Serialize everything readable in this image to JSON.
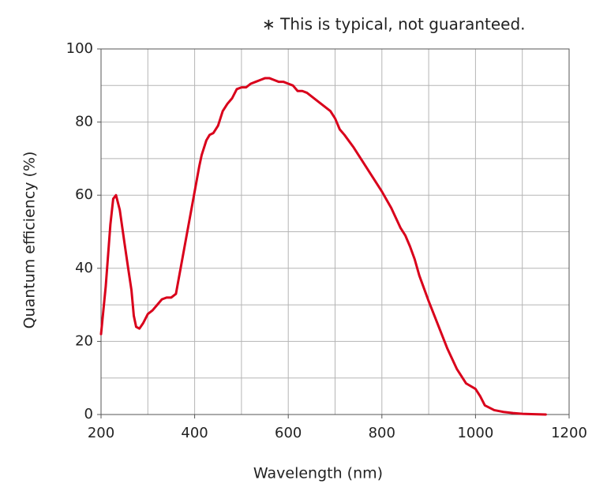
{
  "chart_data": {
    "type": "line",
    "annotation": "∗ This is typical, not guaranteed.",
    "x_label": "Wavelength (nm)",
    "y_label": "Quantum efficiency (%)",
    "xlim": [
      200,
      1200
    ],
    "ylim": [
      0,
      100
    ],
    "xticks": [
      200,
      400,
      600,
      800,
      1000,
      1200
    ],
    "yticks": [
      0,
      20,
      40,
      60,
      80,
      100
    ],
    "x_grid": [
      300,
      400,
      500,
      600,
      700,
      800,
      900,
      1000,
      1100
    ],
    "y_grid": [
      10,
      20,
      30,
      40,
      50,
      60,
      70,
      80,
      90
    ],
    "grid": true,
    "x": [
      200,
      210,
      220,
      226,
      232,
      240,
      250,
      258,
      265,
      270,
      275,
      282,
      290,
      300,
      310,
      320,
      330,
      340,
      350,
      360,
      370,
      380,
      390,
      400,
      410,
      415,
      425,
      432,
      440,
      450,
      460,
      470,
      480,
      490,
      500,
      510,
      520,
      530,
      540,
      550,
      560,
      570,
      580,
      590,
      600,
      610,
      620,
      630,
      640,
      650,
      660,
      670,
      680,
      690,
      700,
      710,
      720,
      740,
      760,
      780,
      800,
      820,
      840,
      850,
      860,
      870,
      880,
      900,
      920,
      940,
      960,
      980,
      1000,
      1010,
      1020,
      1040,
      1060,
      1080,
      1100,
      1120,
      1150
    ],
    "series": [
      {
        "color": "#d9001b",
        "values": [
          22,
          35,
          52,
          59,
          60,
          56,
          47,
          40,
          34,
          27,
          24,
          23.5,
          25,
          27.5,
          28.5,
          30,
          31.5,
          32,
          32,
          33,
          40,
          47,
          54,
          61,
          68,
          71,
          75,
          76.5,
          77,
          79,
          83,
          85,
          86.5,
          89,
          89.5,
          89.5,
          90.5,
          91,
          91.5,
          92,
          92,
          91.5,
          91,
          91,
          90.5,
          90,
          88.5,
          88.5,
          88,
          87,
          86,
          85,
          84,
          83,
          81,
          78,
          76.5,
          73,
          69,
          65,
          61,
          56.5,
          51,
          49,
          46,
          42.5,
          38,
          31,
          24.5,
          18,
          12.5,
          8.5,
          7,
          5,
          2.5,
          1.2,
          0.7,
          0.4,
          0.2,
          0.1,
          0
        ]
      }
    ]
  }
}
